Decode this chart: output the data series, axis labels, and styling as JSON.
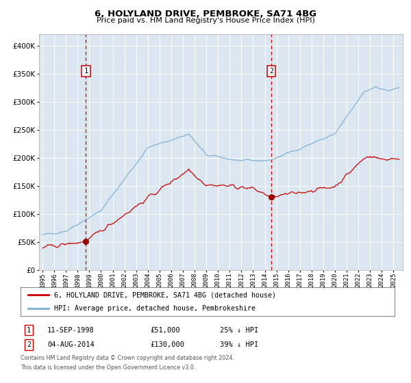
{
  "title1": "6, HOLYLAND DRIVE, PEMBROKE, SA71 4BG",
  "title2": "Price paid vs. HM Land Registry's House Price Index (HPI)",
  "legend_red": "6, HOLYLAND DRIVE, PEMBROKE, SA71 4BG (detached house)",
  "legend_blue": "HPI: Average price, detached house, Pembrokeshire",
  "annotation1_label": "1",
  "annotation1_date": "11-SEP-1998",
  "annotation1_price": "£51,000",
  "annotation1_hpi": "25% ↓ HPI",
  "annotation2_label": "2",
  "annotation2_date": "04-AUG-2014",
  "annotation2_price": "£130,000",
  "annotation2_hpi": "39% ↓ HPI",
  "footnote1": "Contains HM Land Registry data © Crown copyright and database right 2024.",
  "footnote2": "This data is licensed under the Open Government Licence v3.0.",
  "red_color": "#cc0000",
  "blue_color": "#7bafd4",
  "background_color": "#dce6f1",
  "vline_color": "#cc0000",
  "dot_color": "#990000",
  "ylim": [
    0,
    420000
  ],
  "sale1_year": 1998.71,
  "sale1_price": 51000,
  "sale2_year": 2014.58,
  "sale2_price": 130000,
  "xmin": 1994.7,
  "xmax": 2025.8
}
